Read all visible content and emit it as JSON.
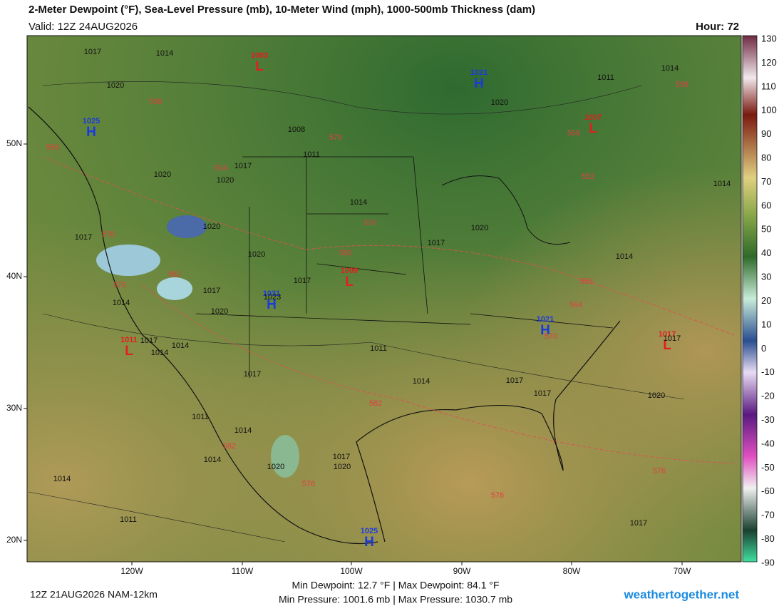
{
  "header": {
    "title": "2-Meter Dewpoint (°F), Sea-Level Pressure (mb), 10-Meter Wind (mph), 1000-500mb Thickness (dam)",
    "valid": "Valid: 12Z 24AUG2026",
    "hour": "Hour: 72"
  },
  "colorbar": {
    "labels": [
      130,
      120,
      110,
      100,
      90,
      80,
      70,
      60,
      50,
      40,
      30,
      20,
      10,
      0,
      -10,
      -20,
      -30,
      -40,
      -50,
      -60,
      -70,
      -80,
      -90
    ]
  },
  "axes": {
    "longitudes": [
      "120W",
      "110W",
      "100W",
      "90W",
      "80W",
      "70W"
    ],
    "latitudes": [
      "50N",
      "40N",
      "30N",
      "20N"
    ]
  },
  "centers": [
    {
      "letter": "L",
      "pressure": "1003"
    },
    {
      "letter": "H",
      "pressure": "1021"
    },
    {
      "letter": "H",
      "pressure": "1025"
    },
    {
      "letter": "L",
      "pressure": "1007"
    },
    {
      "letter": "L",
      "pressure": "1009"
    },
    {
      "letter": "H",
      "pressure": "1031"
    },
    {
      "letter": "L",
      "pressure": "1011"
    },
    {
      "letter": "H",
      "pressure": "1021"
    },
    {
      "letter": "L",
      "pressure": "1017"
    },
    {
      "letter": "H",
      "pressure": "1025"
    }
  ],
  "isobar_labels": [
    "1017",
    "1014",
    "1020",
    "1008",
    "1011",
    "1017",
    "1020",
    "1020",
    "1014",
    "1020",
    "1017",
    "1020",
    "1017",
    "1020",
    "1014",
    "1017",
    "1023",
    "1017",
    "1020",
    "1014",
    "1017",
    "1014",
    "1014",
    "1011",
    "1017",
    "1014",
    "1017",
    "1017",
    "1020",
    "1011",
    "1014",
    "1014",
    "1017",
    "1020",
    "1020",
    "1014",
    "1011",
    "1017",
    "1020",
    "1011",
    "1014",
    "1014",
    "1017"
  ],
  "thickness_labels": [
    "558",
    "558",
    "570",
    "564",
    "576",
    "582",
    "570",
    "582",
    "576",
    "558",
    "564",
    "570",
    "582",
    "582",
    "576",
    "576",
    "576",
    "552",
    "558",
    "558"
  ],
  "footer": {
    "run": "12Z 21AUG2026 NAM-12km",
    "dewpoint": "Min Dewpoint:  12.7 °F | Max Dewpoint:  84.1 °F",
    "pressure": "Min Pressure: 1001.6 mb | Max Pressure: 1030.7 mb",
    "brand": "weathertogether.net"
  }
}
